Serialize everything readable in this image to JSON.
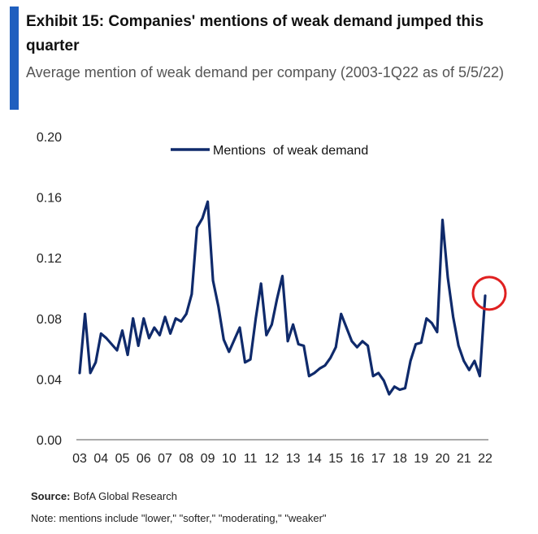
{
  "exhibit": {
    "title": "Exhibit 15: Companies' mentions of weak demand jumped this quarter",
    "subtitle": "Average mention of weak demand per company (2003-1Q22 as of 5/5/22)",
    "accent_color": "#1f5fbf"
  },
  "chart_data": {
    "type": "line",
    "title": "Exhibit 15: Companies' mentions of weak demand jumped this quarter",
    "xlabel": "",
    "ylabel": "",
    "ylim": [
      0,
      0.2
    ],
    "yticks": [
      "0.00",
      "0.04",
      "0.08",
      "0.12",
      "0.16",
      "0.20"
    ],
    "ytick_values": [
      0,
      0.04,
      0.08,
      0.12,
      0.16,
      0.2
    ],
    "xtick_labels": [
      "03",
      "04",
      "05",
      "06",
      "07",
      "08",
      "09",
      "10",
      "11",
      "12",
      "13",
      "14",
      "15",
      "16",
      "17",
      "18",
      "19",
      "20",
      "21",
      "22"
    ],
    "grid": false,
    "legend": "top-center",
    "annotation": "red circle highlighting latest quarter (1Q22)",
    "series": [
      {
        "name": "Mentions  of weak demand",
        "color": "#0f2a6b",
        "values": [
          0.044,
          0.083,
          0.044,
          0.051,
          0.07,
          0.067,
          0.063,
          0.059,
          0.072,
          0.056,
          0.08,
          0.062,
          0.08,
          0.067,
          0.074,
          0.069,
          0.081,
          0.07,
          0.08,
          0.078,
          0.083,
          0.096,
          0.14,
          0.146,
          0.157,
          0.105,
          0.088,
          0.066,
          0.058,
          0.066,
          0.074,
          0.051,
          0.053,
          0.08,
          0.103,
          0.069,
          0.076,
          0.093,
          0.108,
          0.065,
          0.076,
          0.063,
          0.062,
          0.042,
          0.044,
          0.047,
          0.049,
          0.054,
          0.061,
          0.083,
          0.074,
          0.065,
          0.061,
          0.065,
          0.062,
          0.042,
          0.044,
          0.039,
          0.03,
          0.035,
          0.033,
          0.034,
          0.052,
          0.063,
          0.064,
          0.08,
          0.077,
          0.071,
          0.145,
          0.107,
          0.081,
          0.062,
          0.052,
          0.046,
          0.052,
          0.042,
          0.095
        ]
      }
    ],
    "highlight_index": 76,
    "highlight_color": "#e02020"
  },
  "footer": {
    "source_label": "Source:",
    "source_text": "BofA Global Research",
    "note": "Note: mentions include \"lower,\" \"softer,\" \"moderating,\" \"weaker\""
  }
}
